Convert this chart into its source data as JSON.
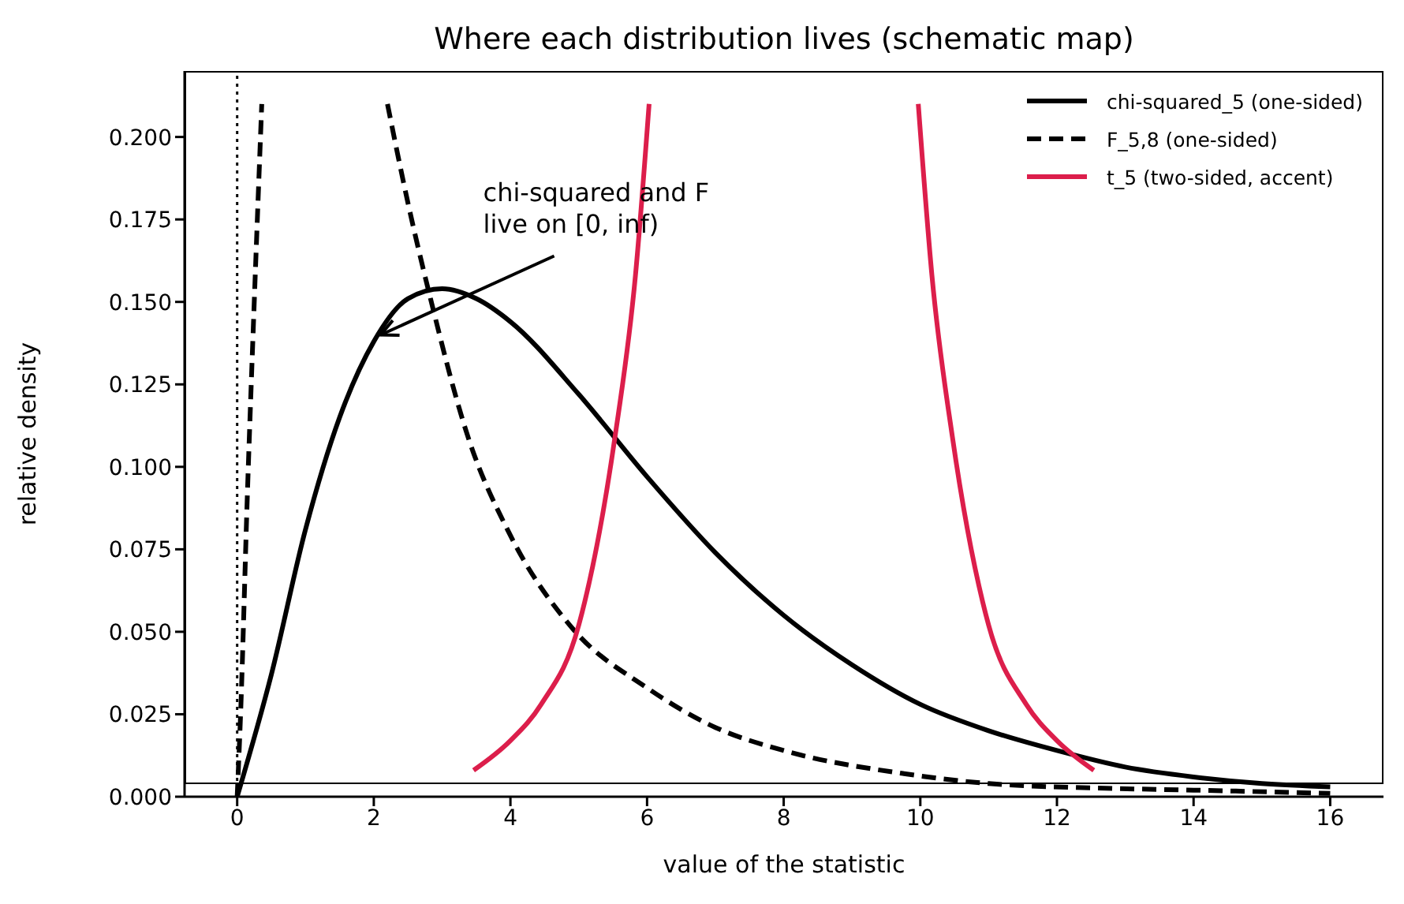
{
  "chart_data": {
    "type": "line",
    "title": "Where each distribution lives (schematic map)",
    "xlabel": "value of the statistic",
    "ylabel": "relative density",
    "xlim": [
      -0.77,
      16.78
    ],
    "xticks": [
      0,
      2,
      4,
      6,
      8,
      10,
      12,
      14,
      16
    ],
    "ylim": [
      0,
      0.22
    ],
    "yticks": [
      {
        "value": 0,
        "label": "0.000"
      },
      {
        "value": 0.025,
        "label": "0.025"
      },
      {
        "value": 0.05,
        "label": "0.050"
      },
      {
        "value": 0.075,
        "label": "0.075"
      },
      {
        "value": 0.1,
        "label": "0.100"
      },
      {
        "value": 0.125,
        "label": "0.125"
      },
      {
        "value": 0.15,
        "label": "0.150"
      },
      {
        "value": 0.175,
        "label": "0.175"
      },
      {
        "value": 0.2,
        "label": "0.200"
      }
    ],
    "legend": "top right",
    "marker": "none",
    "series": [
      {
        "name": "chi-squared_5 (one-sided)",
        "color": "#000000",
        "line_style": "solid",
        "x": [
          0,
          0.5,
          1,
          1.5,
          2,
          2.5,
          3,
          3.5,
          4,
          5,
          6,
          7,
          8,
          9,
          10,
          11,
          12,
          13,
          14,
          15,
          16
        ],
        "values": [
          0,
          0.037,
          0.081,
          0.115,
          0.138,
          0.151,
          0.154,
          0.151,
          0.144,
          0.122,
          0.097,
          0.074,
          0.055,
          0.04,
          0.028,
          0.02,
          0.014,
          0.009,
          0.006,
          0.004,
          0.003
        ]
      },
      {
        "name": "F_5,8 (one-sided)",
        "color": "#000000",
        "line_style": "dashed",
        "x": [
          0,
          0.05,
          0.15,
          0.25,
          0.36,
          1.2,
          2.2,
          2.5,
          2.83,
          3.38,
          3.98,
          4.91,
          6,
          7,
          8,
          9.76,
          11,
          12.85,
          14,
          16
        ],
        "values": [
          0,
          0.025,
          0.092,
          0.15,
          0.21,
          null,
          0.21,
          0.18,
          0.151,
          0.109,
          0.08,
          0.051,
          0.033,
          0.021,
          0.014,
          0.007,
          0.004,
          0.0025,
          0.002,
          0.001
        ]
      },
      {
        "name": "t_5 (two-sided, accent)",
        "color": "#dc1e4b",
        "line_style": "solid",
        "x": [
          3.46,
          4.0,
          4.45,
          5.0,
          5.53,
          5.83,
          6.03,
          8,
          9.97,
          10.17,
          10.47,
          11.0,
          11.55,
          12.0,
          12.54
        ],
        "values": [
          0.008,
          0.017,
          0.028,
          0.052,
          0.109,
          0.158,
          0.21,
          null,
          0.21,
          0.158,
          0.109,
          0.052,
          0.028,
          0.017,
          0.008
        ]
      }
    ],
    "ref_lines": [
      {
        "axis": "x",
        "value": 0,
        "color": "#000000",
        "line_style": "dotted"
      }
    ],
    "annotations": [
      {
        "text": "chi-squared and F\nlive on [0, inf)",
        "x": 2.1,
        "y": 0.14
      }
    ]
  }
}
